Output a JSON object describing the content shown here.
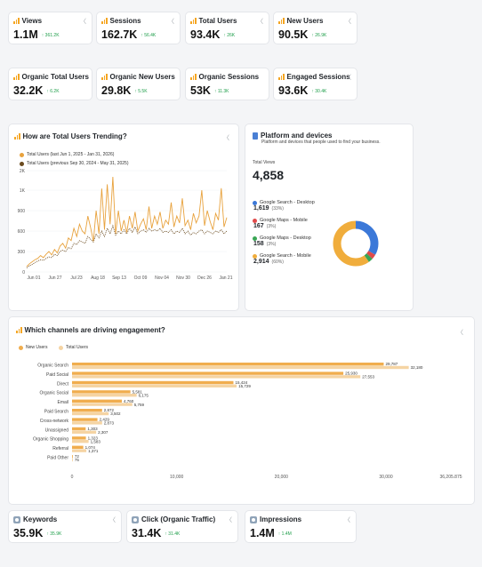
{
  "kpi_row1": [
    {
      "label": "Views",
      "value": "1.1M",
      "delta": "↑ 361.2K"
    },
    {
      "label": "Sessions",
      "value": "162.7K",
      "delta": "↑ 56.4K"
    },
    {
      "label": "Total Users",
      "value": "93.4K",
      "delta": "↑ 26K"
    },
    {
      "label": "New Users",
      "value": "90.5K",
      "delta": "↑ 26.9K"
    }
  ],
  "kpi_row2": [
    {
      "label": "Organic Total Users",
      "value": "32.2K",
      "delta": "↑ 6.2K"
    },
    {
      "label": "Organic New Users",
      "value": "29.8K",
      "delta": "↑ 5.5K"
    },
    {
      "label": "Organic Sessions",
      "value": "53K",
      "delta": "↑ 11.3K"
    },
    {
      "label": "Engaged Sessions",
      "value": "93.6K",
      "delta": "↑ 30.4K"
    }
  ],
  "trend": {
    "title": "How are Total Users Trending?",
    "legend_current": "Total Users (last Jun 1, 2025 - Jan 31, 2026)",
    "legend_previous": "Total Users (previous Sep 30, 2024 - May 31, 2025)",
    "color_current": "#e8a23d",
    "color_previous": "#6b4b1f"
  },
  "platform": {
    "title": "Platform and devices",
    "subtitle": "Platform and devices that people used to find your business.",
    "total_label": "Total Views",
    "total_value": "4,858",
    "items": [
      {
        "name": "Google Search - Desktop",
        "value": "1,619",
        "pct": "(33%)",
        "color": "#3b78d8",
        "num": 1619
      },
      {
        "name": "Google Maps - Mobile",
        "value": "167",
        "pct": "(3%)",
        "color": "#e04a4a",
        "num": 167
      },
      {
        "name": "Google Maps - Desktop",
        "value": "158",
        "pct": "(3%)",
        "color": "#3aa655",
        "num": 158
      },
      {
        "name": "Google Search - Mobile",
        "value": "2,914",
        "pct": "(60%)",
        "color": "#f0ad3c",
        "num": 2914
      }
    ]
  },
  "channels": {
    "title": "Which channels are driving engagement?",
    "legend": [
      "New Users",
      "Total Users"
    ],
    "colors": [
      "#f0ad4e",
      "#f5d4a3"
    ]
  },
  "kpi_row3": [
    {
      "label": "Keywords",
      "value": "35.9K",
      "delta": "↑ 35.9K"
    },
    {
      "label": "Click (Organic Traffic)",
      "value": "31.4K",
      "delta": "↑ 31.4K"
    },
    {
      "label": "Impressions",
      "value": "1.4M",
      "delta": "↑ 1.4M"
    }
  ],
  "chart_data": [
    {
      "type": "line",
      "ylim": [
        0,
        2000
      ],
      "y_ticks": [
        "0",
        "300",
        "600",
        "900",
        "1K",
        "2K"
      ],
      "x_ticks": [
        "Jun 01",
        "Jun 27",
        "Jul 23",
        "Aug 18",
        "Sep 13",
        "Oct 09",
        "Nov 04",
        "Nov 30",
        "Dec 26",
        "Jan 21"
      ],
      "series": [
        {
          "name": "Total Users (last Jun 1, 2025 - Jan 31, 2026)",
          "values": [
            80,
            120,
            150,
            180,
            200,
            240,
            210,
            260,
            300,
            250,
            330,
            280,
            380,
            420,
            350,
            500,
            460,
            640,
            520,
            700,
            600,
            560,
            820,
            650,
            450,
            900,
            560,
            1080,
            620,
            1300,
            700,
            1680,
            560,
            900,
            600,
            760,
            580,
            820,
            640,
            880,
            600,
            700,
            780,
            620,
            920,
            640,
            820,
            700,
            880,
            640,
            760,
            700,
            940,
            660,
            820,
            720,
            960,
            680,
            760,
            620,
            860,
            720,
            820,
            1000,
            680,
            900,
            740,
            620,
            860,
            760,
            1100,
            660,
            800
          ]
        },
        {
          "name": "Total Users (previous Sep 30, 2024 - May 31, 2025)",
          "values": [
            60,
            90,
            110,
            140,
            160,
            180,
            170,
            200,
            220,
            210,
            260,
            240,
            300,
            320,
            300,
            360,
            340,
            420,
            400,
            460,
            440,
            420,
            520,
            480,
            440,
            560,
            500,
            600,
            520,
            640,
            560,
            680,
            540,
            600,
            560,
            620,
            560,
            640,
            580,
            660,
            560,
            600,
            620,
            580,
            640,
            600,
            620,
            600,
            640,
            580,
            600,
            580,
            620,
            560,
            600,
            580,
            640,
            560,
            600,
            540,
            580,
            560,
            600,
            620,
            560,
            600,
            580,
            560,
            600,
            580,
            620,
            560,
            600
          ]
        }
      ]
    },
    {
      "type": "pie",
      "labels": [
        "Google Search - Desktop",
        "Google Maps - Mobile",
        "Google Maps - Desktop",
        "Google Search - Mobile"
      ],
      "values": [
        1619,
        167,
        158,
        2914
      ]
    },
    {
      "type": "bar",
      "orientation": "horizontal",
      "categories": [
        "Organic Search",
        "Paid Social",
        "Direct",
        "Organic Social",
        "Email",
        "Paid Search",
        "Cross-network",
        "Unassigned",
        "Organic Shopping",
        "Referral",
        "Paid Other"
      ],
      "series": [
        {
          "name": "New Users",
          "values": [
            29787,
            25930,
            15424,
            5581,
            4760,
            2872,
            2429,
            1303,
            1323,
            1074,
            72
          ]
        },
        {
          "name": "Total Users",
          "values": [
            32180,
            27553,
            15729,
            6175,
            5759,
            3502,
            2873,
            2307,
            1583,
            1371,
            75
          ]
        }
      ],
      "value_labels_new": [
        "29,787",
        "25,930",
        "15,424",
        "5,581",
        "4,760",
        "2,872",
        "2,429",
        "1,303",
        "1,323",
        "1,074",
        "72"
      ],
      "value_labels_total": [
        "32,180",
        "27,553",
        "15,729",
        "6,175",
        "5,759",
        "3,502",
        "2,873",
        "2,307",
        "1,583",
        "1,371",
        "75"
      ],
      "x_ticks": [
        "0",
        "10,000",
        "20,000",
        "30,000",
        "36,205.875"
      ],
      "xlim": [
        0,
        36205.875
      ]
    }
  ]
}
